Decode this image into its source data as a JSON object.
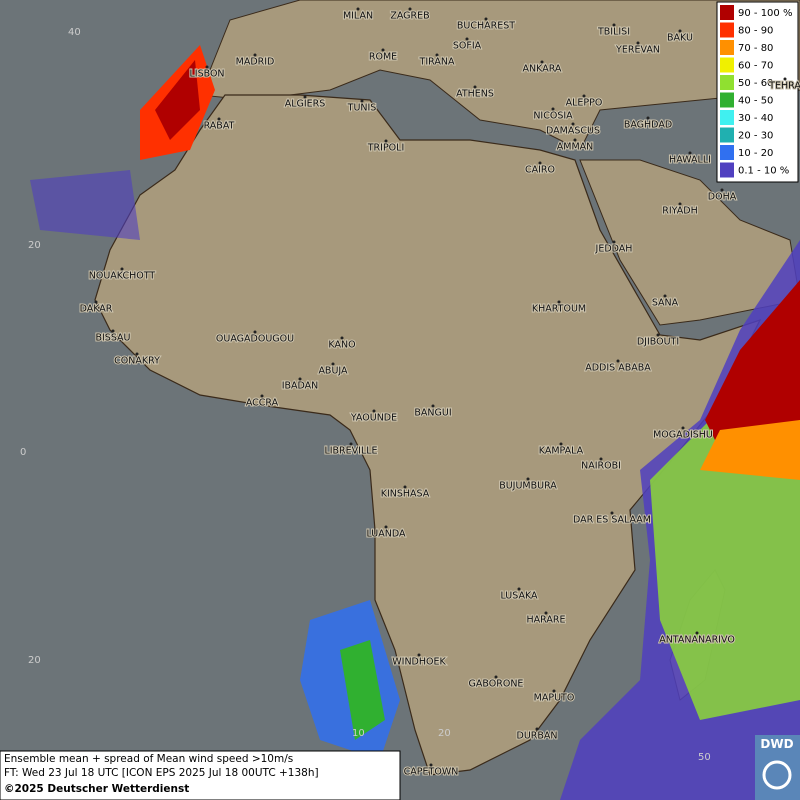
{
  "map": {
    "cities": [
      "MILAN",
      "ZAGREB",
      "BUCHAREST",
      "SOFIA",
      "MADRID",
      "ROME",
      "TIRANA",
      "ANKARA",
      "TBILISI",
      "BAKU",
      "YEREVAN",
      "TEHRA",
      "LISBON",
      "ALGIERS",
      "TUNIS",
      "ATHENS",
      "ALEPPO",
      "RABAT",
      "NICOSIA",
      "BAGHDAD",
      "DAMASCUS",
      "TRIPOLI",
      "AMMAN",
      "HAWALLI",
      "CAIRO",
      "DOHA",
      "RIYADH",
      "JEDDAH",
      "NOUAKCHOTT",
      "DAKAR",
      "SANA",
      "KHARTOUM",
      "BISSAU",
      "OUAGADOUGOU",
      "KANO",
      "DJIBOUTI",
      "CONAKRY",
      "ABUJA",
      "ADDIS ABABA",
      "IBADAN",
      "ACCRA",
      "YAOUNDE",
      "BANGUI",
      "MOGADISHU",
      "LIBREVILLE",
      "KAMPALA",
      "NAIROBI",
      "BUJUMBURA",
      "KINSHASA",
      "DAR ES SALAAM",
      "LUANDA",
      "LUSAKA",
      "HARARE",
      "ANTANANARIVO",
      "WINDHOEK",
      "GABORONE",
      "MAPUTO",
      "DURBAN",
      "CAPETOWN"
    ],
    "grid_labels": [
      "40",
      "20",
      "0",
      "20",
      "10",
      "20",
      "50"
    ]
  },
  "legend": {
    "entries": [
      {
        "label": "90 - 100 %",
        "color": "#b00000"
      },
      {
        "label": "80 - 90",
        "color": "#ff3000"
      },
      {
        "label": "70 - 80",
        "color": "#ff9000"
      },
      {
        "label": "60 - 70",
        "color": "#f0f000"
      },
      {
        "label": "50 - 60",
        "color": "#90e030"
      },
      {
        "label": "40 - 50",
        "color": "#30b030"
      },
      {
        "label": "30 - 40",
        "color": "#40f0f0"
      },
      {
        "label": "20 - 30",
        "color": "#20b0b0"
      },
      {
        "label": "10 - 20",
        "color": "#3070f0"
      },
      {
        "label": "0.1 - 10 %",
        "color": "#5040c0"
      }
    ]
  },
  "footer": {
    "lines": [
      "Ensemble mean + spread of Mean wind speed >10m/s",
      "FT: Wed 23 Jul 18 UTC [ICON EPS 2025 Jul 18 00UTC +138h]",
      "©2025 Deutscher Wetterdienst"
    ]
  },
  "logo": "DWD"
}
